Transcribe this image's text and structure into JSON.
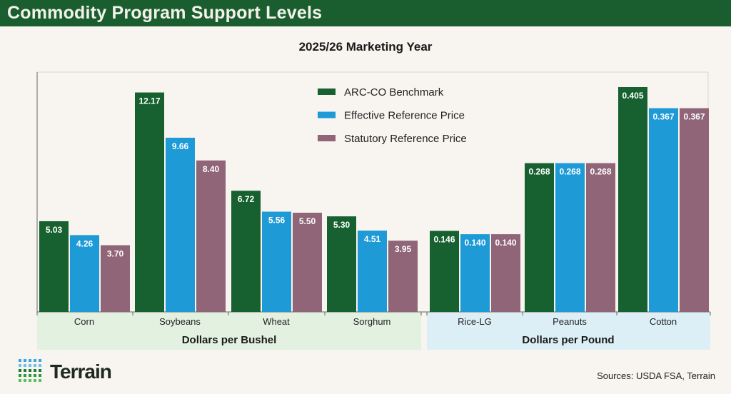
{
  "header": {
    "title": "Commodity Program Support Levels"
  },
  "footer": {
    "sources": "Sources: USDA FSA, Terrain",
    "logo_text": "Terrain"
  },
  "colors": {
    "arc_co": "#17602f",
    "effective": "#1e9ad6",
    "statutory": "#8f6577",
    "bushel_band": "#e2f1e0",
    "pound_band": "#dceff6",
    "header": "#1a5e2f"
  },
  "chart_data": {
    "type": "bar",
    "title": "2025/26 Marketing Year",
    "legend_position": "top-center",
    "grid": false,
    "series": [
      {
        "name": "ARC-CO Benchmark",
        "values": [
          5.03,
          12.17,
          6.72,
          5.3,
          0.146,
          0.268,
          0.405
        ],
        "labels": [
          "5.03",
          "12.17",
          "6.72",
          "5.30",
          "0.146",
          "0.268",
          "0.405"
        ]
      },
      {
        "name": "Effective Reference Price",
        "values": [
          4.26,
          9.66,
          5.56,
          4.51,
          0.14,
          0.268,
          0.367
        ],
        "labels": [
          "4.26",
          "9.66",
          "5.56",
          "4.51",
          "0.140",
          "0.268",
          "0.367"
        ]
      },
      {
        "name": "Statutory Reference Price",
        "values": [
          3.7,
          8.4,
          5.5,
          3.95,
          0.14,
          0.268,
          0.367
        ],
        "labels": [
          "3.70",
          "8.40",
          "5.50",
          "3.95",
          "0.140",
          "0.268",
          "0.367"
        ]
      }
    ],
    "categories": [
      "Corn",
      "Soybeans",
      "Wheat",
      "Sorghum",
      "Rice-LG",
      "Peanuts",
      "Cotton"
    ],
    "unit_groups": [
      {
        "label": "Dollars per Bushel",
        "categories": [
          "Corn",
          "Soybeans",
          "Wheat",
          "Sorghum"
        ],
        "ylim": [
          0,
          13.3
        ]
      },
      {
        "label": "Dollars per Pound",
        "categories": [
          "Rice-LG",
          "Peanuts",
          "Cotton"
        ],
        "ylim": [
          0,
          0.432
        ]
      }
    ]
  }
}
